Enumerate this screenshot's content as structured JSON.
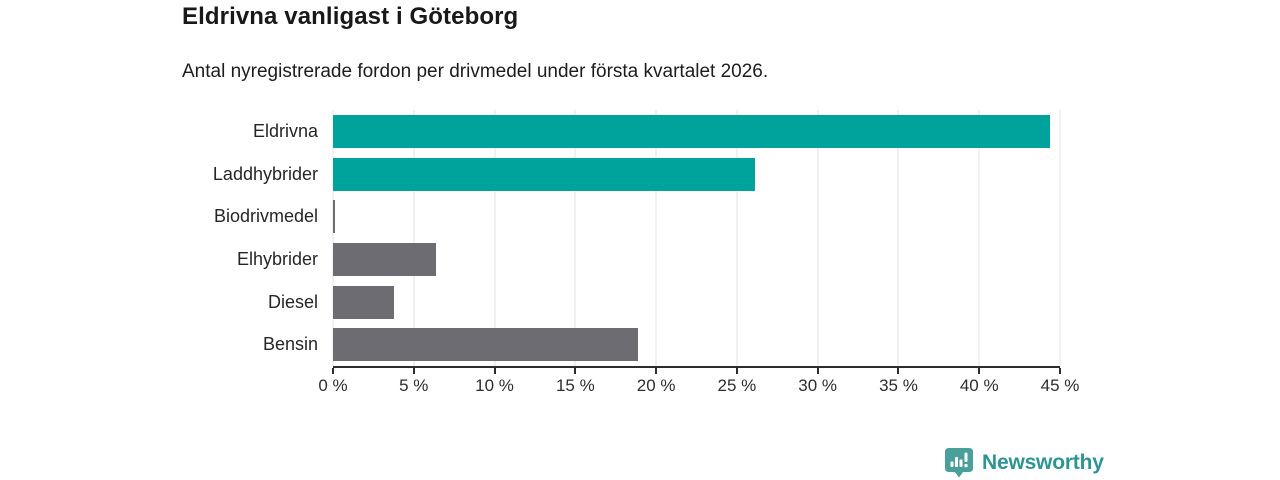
{
  "header": {
    "title": "Eldrivna vanligast i Göteborg",
    "subtitle": "Antal nyregistrerade fordon per drivmedel under första kvartalet 2026."
  },
  "chart_data": {
    "type": "bar",
    "orientation": "horizontal",
    "title": "Eldrivna vanligast i Göteborg",
    "subtitle": "Antal nyregistrerade fordon per drivmedel under första kvartalet 2026.",
    "categories": [
      "Eldrivna",
      "Laddhybrider",
      "Biodrivmedel",
      "Elhybrider",
      "Diesel",
      "Bensin"
    ],
    "values": [
      44.4,
      26.1,
      0.1,
      6.4,
      3.8,
      18.9
    ],
    "unit": "%",
    "xlim": [
      0,
      45
    ],
    "x_tick_labels": [
      "0 %",
      "5 %",
      "10 %",
      "15 %",
      "20 %",
      "25 %",
      "30 %",
      "35 %",
      "40 %",
      "45 %"
    ],
    "grid": true,
    "legend": false,
    "bar_colors": [
      "#00a39b",
      "#00a39b",
      "#6c6c72",
      "#6c6c72",
      "#6c6c72",
      "#6c6c72"
    ],
    "colors": {
      "highlight": "#00a39b",
      "default_bar": "#6c6c72",
      "axis": "#2d2d2d",
      "gridline": "#e3e3e3",
      "label_text": "#262626"
    }
  },
  "branding": {
    "wordmark": "Newsworthy",
    "icon": "newsworthy-bar-chart-bubble-icon",
    "icon_color": "#49a09b",
    "wordmark_color": "#2e9494"
  }
}
